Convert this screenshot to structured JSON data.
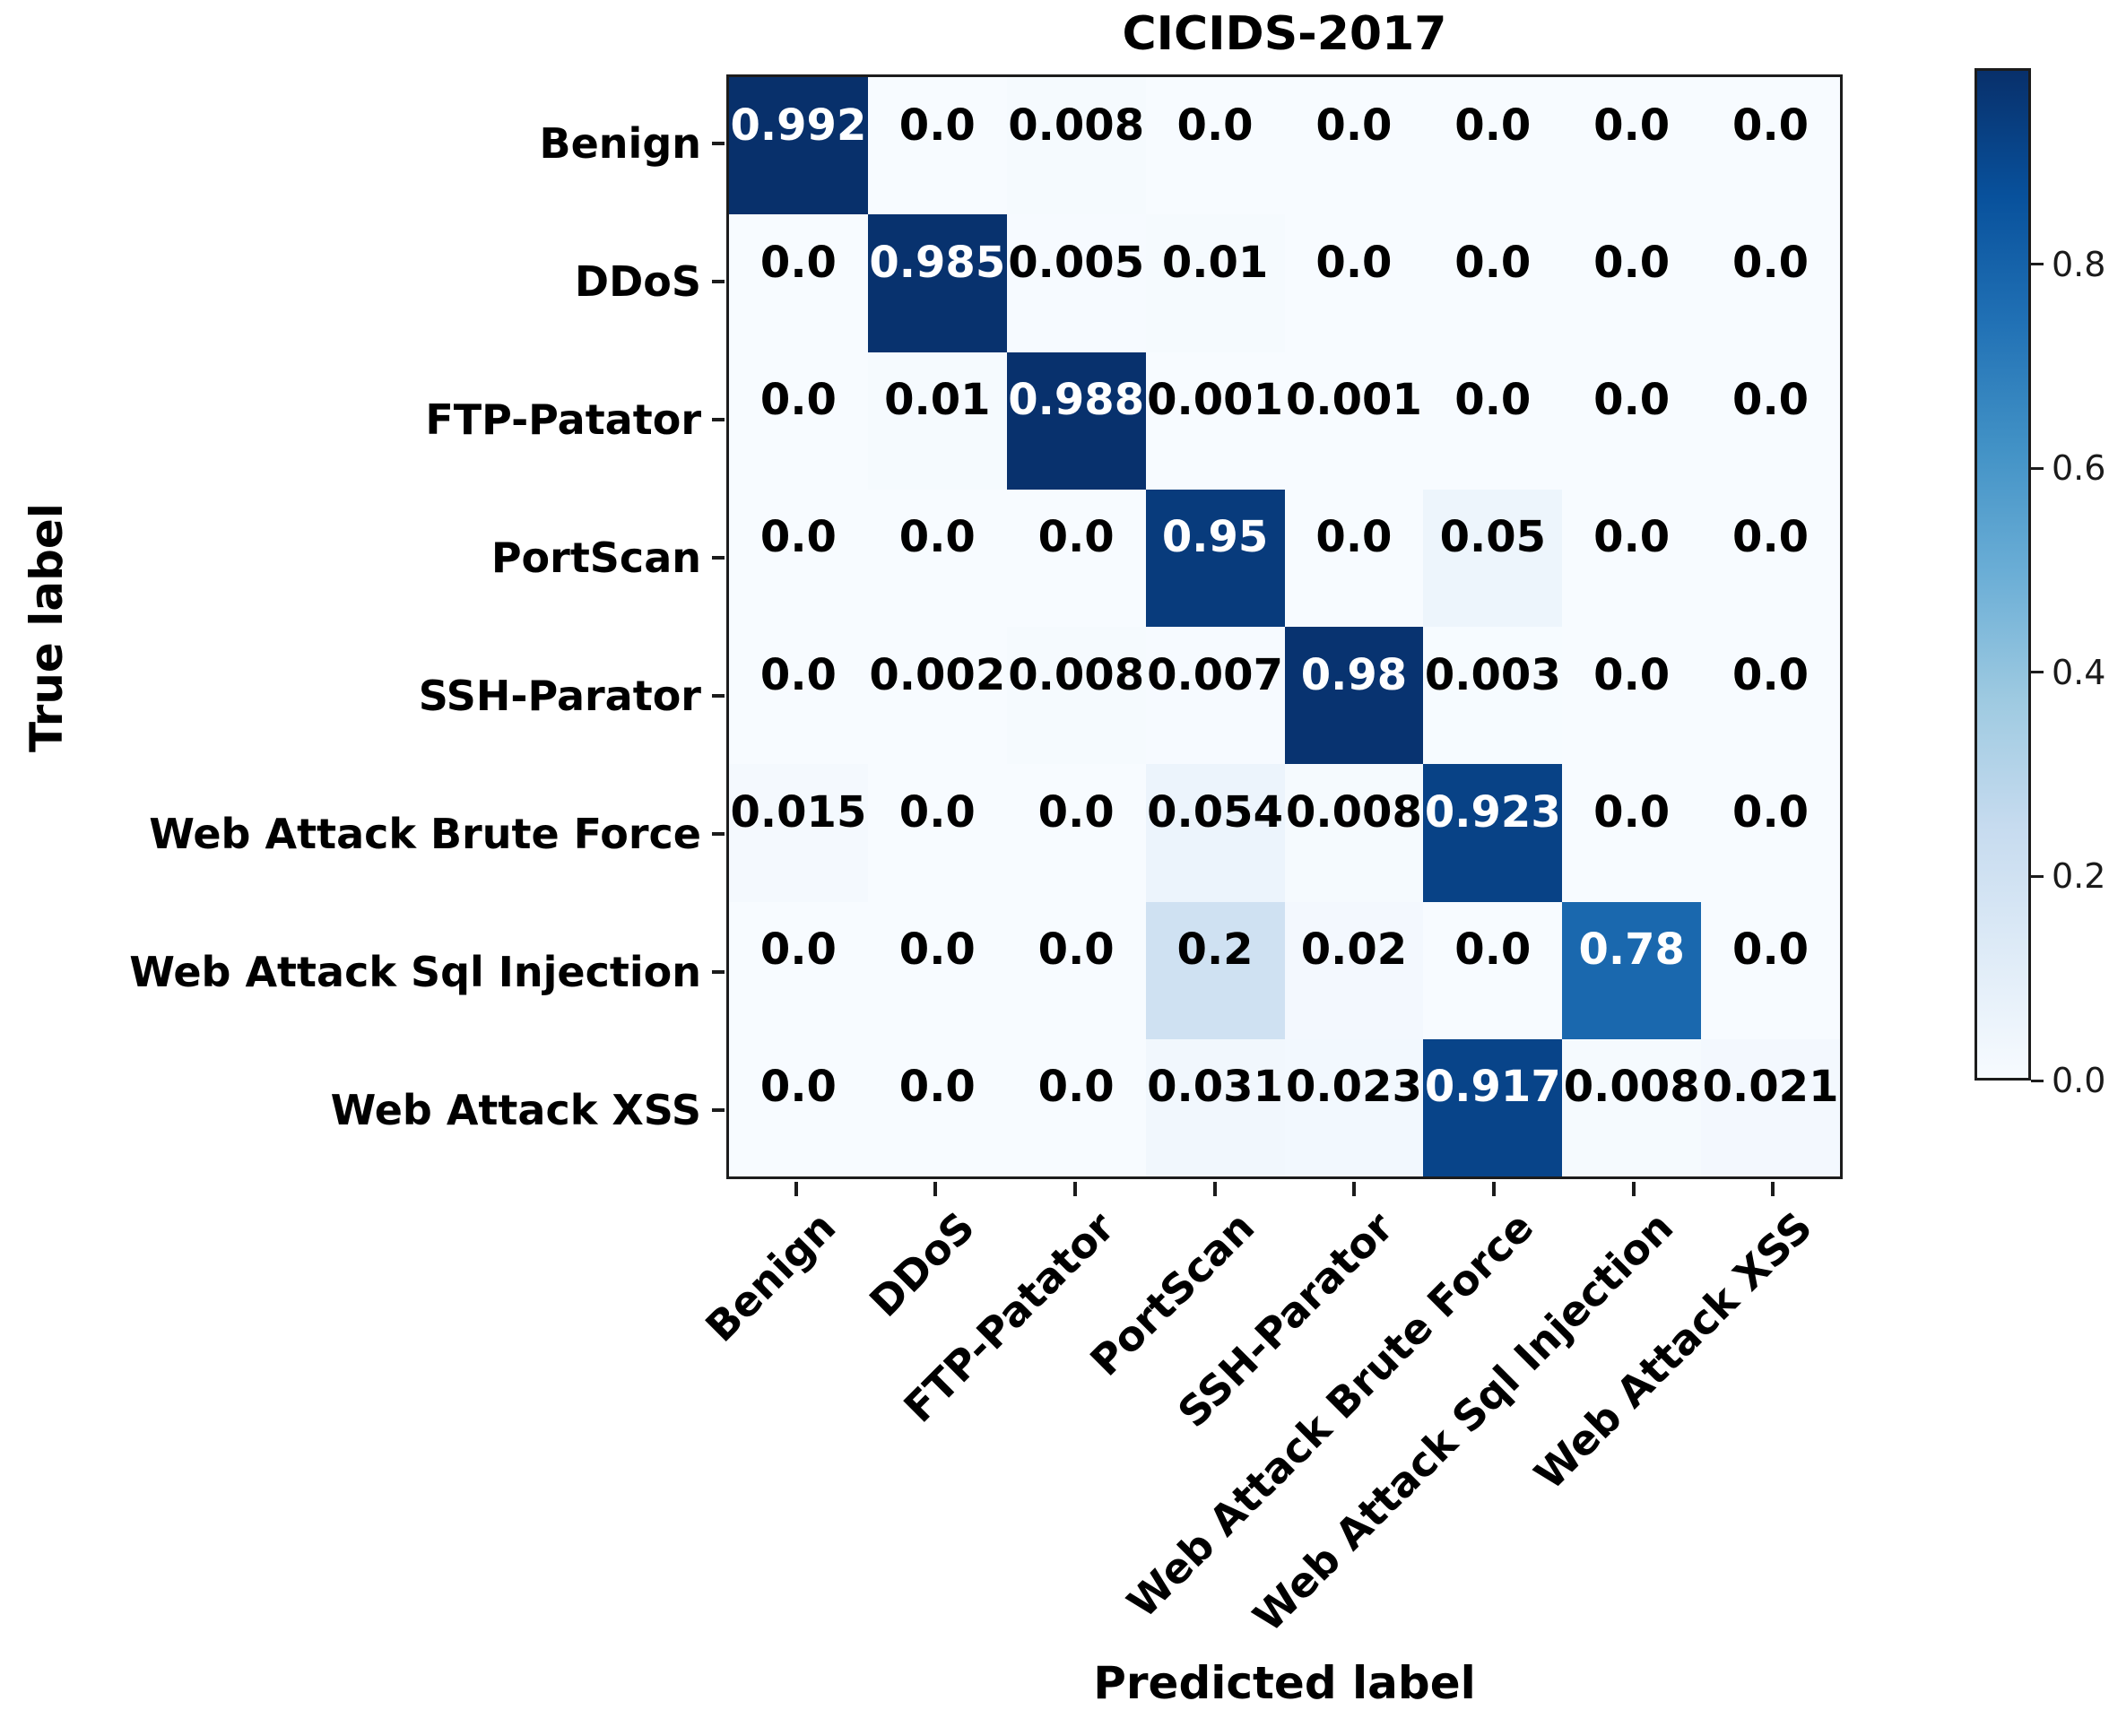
{
  "chart_data": {
    "type": "heatmap",
    "title": "CICIDS-2017",
    "xlabel": "Predicted label",
    "ylabel": "True label",
    "classes": [
      "Benign",
      "DDoS",
      "FTP-Patator",
      "PortScan",
      "SSH-Parator",
      "Web Attack Brute Force",
      "Web Attack Sql Injection",
      "Web Attack XSS"
    ],
    "matrix": [
      [
        "0.992",
        "0.0",
        "0.008",
        "0.0",
        "0.0",
        "0.0",
        "0.0",
        "0.0"
      ],
      [
        "0.0",
        "0.985",
        "0.005",
        "0.01",
        "0.0",
        "0.0",
        "0.0",
        "0.0"
      ],
      [
        "0.0",
        "0.01",
        "0.988",
        "0.001",
        "0.001",
        "0.0",
        "0.0",
        "0.0"
      ],
      [
        "0.0",
        "0.0",
        "0.0",
        "0.95",
        "0.0",
        "0.05",
        "0.0",
        "0.0"
      ],
      [
        "0.0",
        "0.002",
        "0.008",
        "0.007",
        "0.98",
        "0.003",
        "0.0",
        "0.0"
      ],
      [
        "0.015",
        "0.0",
        "0.0",
        "0.054",
        "0.008",
        "0.923",
        "0.0",
        "0.0"
      ],
      [
        "0.0",
        "0.0",
        "0.0",
        "0.2",
        "0.02",
        "0.0",
        "0.78",
        "0.0"
      ],
      [
        "0.0",
        "0.0",
        "0.0",
        "0.031",
        "0.023",
        "0.917",
        "0.008",
        "0.021"
      ]
    ],
    "vmin": 0.0,
    "vmax": 0.992,
    "grid": false,
    "legend_position": "none",
    "colormap": {
      "name": "Blues",
      "anchors": [
        "#f7fbff",
        "#deebf7",
        "#c6dbef",
        "#9ecae1",
        "#6baed6",
        "#4292c6",
        "#2171b5",
        "#08519c",
        "#08306b"
      ]
    },
    "cell_text_colors": {
      "light": "#ffffff",
      "dark": "#000000",
      "threshold": 0.5
    },
    "colorbar_ticks": [
      "0.8",
      "0.6",
      "0.4",
      "0.2",
      "0.0"
    ]
  }
}
